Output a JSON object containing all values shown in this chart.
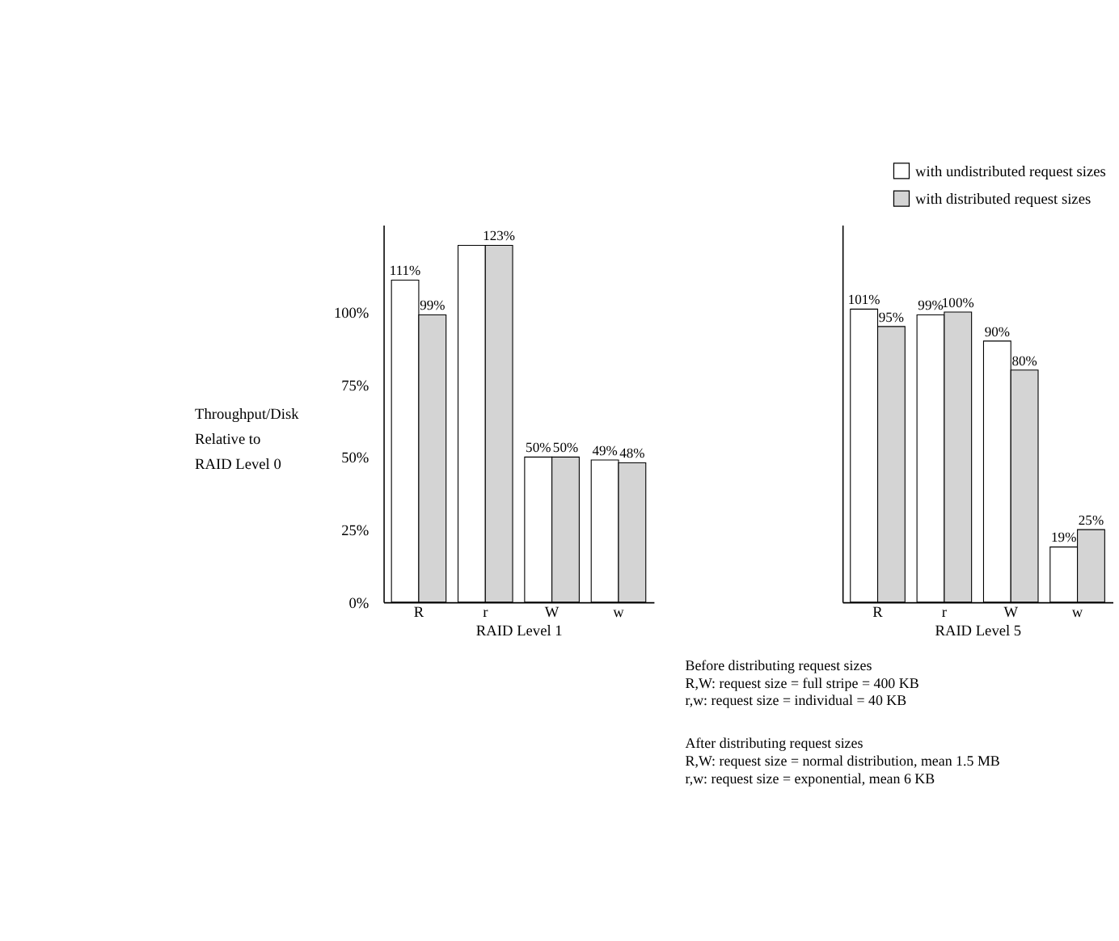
{
  "chart_data": [
    {
      "type": "bar",
      "categories": [
        "R",
        "r",
        "W",
        "w"
      ],
      "xlabel": "RAID Level 1",
      "ylabel": "Throughput/Disk\nRelative to\nRAID Level 0",
      "series": [
        {
          "color": "#ffffff",
          "values": [
            111,
            123,
            50,
            49
          ]
        },
        {
          "color": "#d4d4d4",
          "values": [
            99,
            123,
            50,
            48
          ]
        }
      ],
      "ylim": [
        0,
        130
      ],
      "yticks": [
        {
          "value": 0,
          "label": "0%"
        },
        {
          "value": 25,
          "label": "25%"
        },
        {
          "value": 50,
          "label": "50%"
        },
        {
          "value": 75,
          "label": "75%"
        },
        {
          "value": 100,
          "label": "100%"
        }
      ],
      "value_labels": [
        [
          "111%",
          null,
          "50%",
          "49%"
        ],
        [
          "99%",
          "123%",
          "50%",
          "48%"
        ]
      ]
    },
    {
      "type": "bar",
      "categories": [
        "R",
        "r",
        "W",
        "w"
      ],
      "xlabel": "RAID Level 5",
      "tick_labels": "x",
      "legend": "top right",
      "series": [
        {
          "name": "with undistributed request sizes",
          "color": "#ffffff",
          "values": [
            101,
            99,
            90,
            19
          ]
        },
        {
          "name": "with distributed request sizes",
          "color": "#d4d4d4",
          "values": [
            95,
            100,
            80,
            25
          ]
        }
      ],
      "ylim": [
        0,
        130
      ],
      "value_labels": [
        [
          "101%",
          "99%",
          "90%",
          "19%"
        ],
        [
          "95%",
          "100%",
          "80%",
          "25%"
        ]
      ],
      "annotations": [
        "Before distributing request sizes\n  R,W: request size = full stripe = 400 KB\n  r,w: request size = individual = 40 KB",
        "After distributing request sizes\n  R,W: request size = normal distribution, mean 1.5 MB\n  r,w: request size = exponential, mean 6 KB"
      ]
    }
  ]
}
